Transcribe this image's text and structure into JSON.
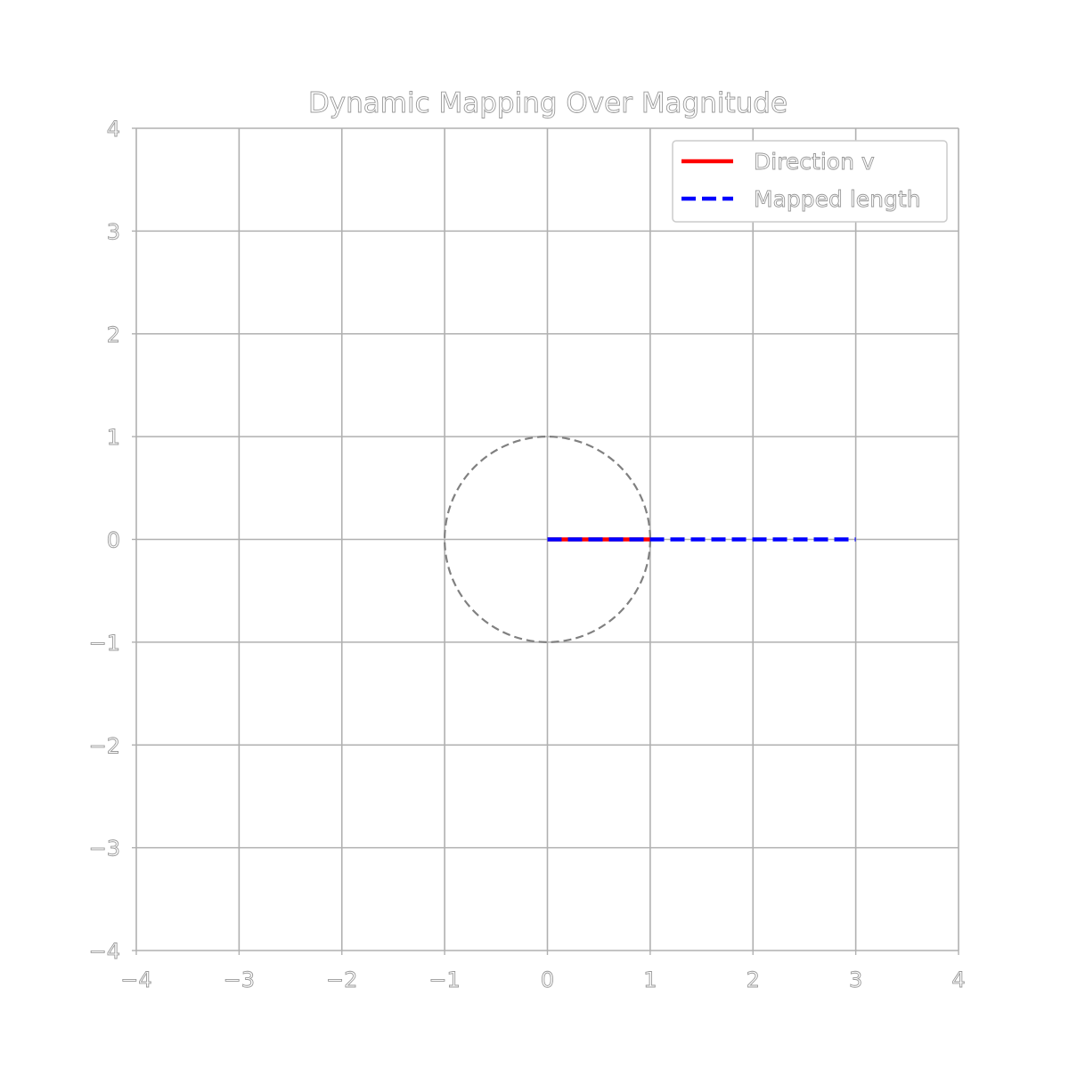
{
  "chart_data": {
    "type": "line",
    "title": "Dynamic Mapping Over Magnitude",
    "xlabel": "",
    "ylabel": "",
    "xlim": [
      -4,
      4
    ],
    "ylim": [
      -4,
      4
    ],
    "grid": true,
    "aspect": "equal",
    "legend_position": "top-right",
    "x_ticks": [
      -4,
      -3,
      -2,
      -1,
      0,
      1,
      2,
      3,
      4
    ],
    "y_ticks": [
      -4,
      -3,
      -2,
      -1,
      0,
      1,
      2,
      3,
      4
    ],
    "x_tick_labels": [
      "−4",
      "−3",
      "−2",
      "−1",
      "0",
      "1",
      "2",
      "3",
      "4"
    ],
    "y_tick_labels": [
      "−4",
      "−3",
      "−2",
      "−1",
      "0",
      "1",
      "2",
      "3",
      "4"
    ],
    "series": [
      {
        "name": "Direction v",
        "color": "#ff0000",
        "line_style": "solid",
        "x": [
          0,
          1
        ],
        "y": [
          0,
          0
        ]
      },
      {
        "name": "Mapped length",
        "color": "#0000ff",
        "line_style": "dashed",
        "x": [
          0,
          3
        ],
        "y": [
          0,
          0
        ]
      }
    ],
    "unit_circle": {
      "center": [
        0,
        0
      ],
      "radius": 1,
      "color": "#808080",
      "line_style": "dashed"
    }
  }
}
